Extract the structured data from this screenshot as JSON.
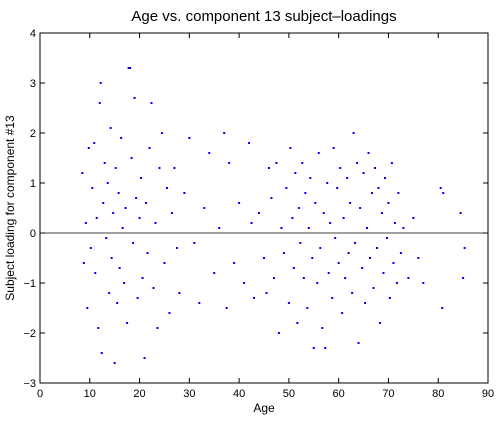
{
  "chart_data": {
    "type": "scatter",
    "title": "Age vs. component 13 subject–loadings",
    "xlabel": "Age",
    "ylabel": "Subject loading for component #13",
    "xlim": [
      0,
      90
    ],
    "ylim": [
      -3,
      4
    ],
    "xticks": [
      0,
      10,
      20,
      30,
      40,
      50,
      60,
      70,
      80,
      90
    ],
    "yticks": [
      -3,
      -2,
      -1,
      0,
      1,
      2,
      3,
      4
    ],
    "xtick_labels": [
      "0",
      "10",
      "20",
      "30",
      "40",
      "50",
      "60",
      "70",
      "80",
      "90"
    ],
    "ytick_labels": [
      "−3",
      "−2",
      "−1",
      "0",
      "1",
      "2",
      "3",
      "4"
    ],
    "reference_line_y": 0,
    "grid": false,
    "marker_color": "#0000ff",
    "axis_color": "#000000",
    "points": [
      [
        8.5,
        1.2
      ],
      [
        8.8,
        -0.6
      ],
      [
        9.2,
        0.2
      ],
      [
        9.5,
        -1.5
      ],
      [
        9.8,
        1.7
      ],
      [
        10.2,
        -0.3
      ],
      [
        10.5,
        0.9
      ],
      [
        10.9,
        1.8
      ],
      [
        11.1,
        -0.8
      ],
      [
        11.4,
        0.3
      ],
      [
        11.7,
        -1.9
      ],
      [
        12.0,
        2.6
      ],
      [
        12.2,
        3.0
      ],
      [
        12.4,
        -2.4
      ],
      [
        12.7,
        0.6
      ],
      [
        13.0,
        1.4
      ],
      [
        13.3,
        -0.1
      ],
      [
        13.6,
        1.0
      ],
      [
        13.9,
        -1.2
      ],
      [
        14.2,
        2.1
      ],
      [
        14.4,
        -0.5
      ],
      [
        14.7,
        0.4
      ],
      [
        15.0,
        -2.6
      ],
      [
        15.2,
        1.3
      ],
      [
        15.5,
        -1.4
      ],
      [
        15.8,
        0.8
      ],
      [
        16.0,
        -0.7
      ],
      [
        16.3,
        1.9
      ],
      [
        16.6,
        0.1
      ],
      [
        16.9,
        -1.0
      ],
      [
        17.2,
        0.5
      ],
      [
        17.5,
        -1.8
      ],
      [
        17.8,
        3.3
      ],
      [
        18.1,
        3.3
      ],
      [
        18.4,
        1.5
      ],
      [
        18.7,
        -0.2
      ],
      [
        19.0,
        2.7
      ],
      [
        19.3,
        0.7
      ],
      [
        19.6,
        -1.3
      ],
      [
        20.0,
        0.3
      ],
      [
        20.3,
        1.1
      ],
      [
        20.6,
        -0.9
      ],
      [
        21.0,
        -2.5
      ],
      [
        21.3,
        0.6
      ],
      [
        21.6,
        -0.4
      ],
      [
        22.0,
        1.7
      ],
      [
        22.4,
        2.6
      ],
      [
        22.8,
        -1.1
      ],
      [
        23.2,
        0.2
      ],
      [
        23.6,
        -1.9
      ],
      [
        24.0,
        1.3
      ],
      [
        24.5,
        2.0
      ],
      [
        25.0,
        -0.6
      ],
      [
        25.5,
        0.9
      ],
      [
        26.0,
        -1.6
      ],
      [
        26.5,
        0.4
      ],
      [
        27.0,
        1.3
      ],
      [
        27.5,
        -0.3
      ],
      [
        28.0,
        -1.2
      ],
      [
        29.0,
        0.8
      ],
      [
        30.0,
        1.9
      ],
      [
        31.0,
        -0.2
      ],
      [
        32.0,
        -1.4
      ],
      [
        33.0,
        0.5
      ],
      [
        34.0,
        1.6
      ],
      [
        35.0,
        -0.8
      ],
      [
        36.0,
        0.1
      ],
      [
        37.0,
        2.0
      ],
      [
        37.5,
        -1.5
      ],
      [
        38.0,
        1.4
      ],
      [
        39.0,
        -0.6
      ],
      [
        40.0,
        0.6
      ],
      [
        41.0,
        -1.0
      ],
      [
        42.0,
        1.8
      ],
      [
        42.5,
        0.2
      ],
      [
        43.0,
        -1.3
      ],
      [
        44.0,
        0.4
      ],
      [
        45.0,
        -0.5
      ],
      [
        45.5,
        -1.2
      ],
      [
        46.0,
        1.3
      ],
      [
        46.5,
        0.7
      ],
      [
        47.0,
        -0.9
      ],
      [
        47.5,
        1.4
      ],
      [
        48.0,
        -2.0
      ],
      [
        48.5,
        0.1
      ],
      [
        49.0,
        -0.4
      ],
      [
        49.5,
        0.9
      ],
      [
        50.0,
        -1.4
      ],
      [
        50.3,
        1.7
      ],
      [
        50.7,
        0.3
      ],
      [
        51.0,
        -0.7
      ],
      [
        51.3,
        1.2
      ],
      [
        51.7,
        -1.8
      ],
      [
        52.0,
        0.5
      ],
      [
        52.3,
        -0.2
      ],
      [
        52.7,
        1.4
      ],
      [
        53.0,
        -0.9
      ],
      [
        53.3,
        0.8
      ],
      [
        53.7,
        -1.5
      ],
      [
        54.0,
        0.1
      ],
      [
        54.3,
        1.1
      ],
      [
        54.7,
        -0.5
      ],
      [
        55.0,
        -2.3
      ],
      [
        55.3,
        0.6
      ],
      [
        55.7,
        -1.0
      ],
      [
        56.0,
        1.6
      ],
      [
        56.3,
        -0.3
      ],
      [
        56.7,
        -1.9
      ],
      [
        57.0,
        0.4
      ],
      [
        57.3,
        -2.3
      ],
      [
        57.7,
        1.0
      ],
      [
        58.0,
        -0.8
      ],
      [
        58.3,
        0.2
      ],
      [
        58.7,
        -1.3
      ],
      [
        59.0,
        1.7
      ],
      [
        59.3,
        -0.1
      ],
      [
        59.7,
        0.9
      ],
      [
        60.0,
        -0.6
      ],
      [
        60.3,
        1.3
      ],
      [
        60.7,
        -1.6
      ],
      [
        61.0,
        0.3
      ],
      [
        61.3,
        -0.9
      ],
      [
        61.7,
        1.1
      ],
      [
        62.0,
        -0.4
      ],
      [
        62.3,
        0.6
      ],
      [
        62.7,
        -1.2
      ],
      [
        63.0,
        2.0
      ],
      [
        63.3,
        -0.2
      ],
      [
        63.7,
        1.4
      ],
      [
        64.0,
        -2.2
      ],
      [
        64.3,
        0.5
      ],
      [
        64.7,
        -0.7
      ],
      [
        65.0,
        1.2
      ],
      [
        65.3,
        -1.4
      ],
      [
        65.7,
        0.1
      ],
      [
        66.0,
        1.6
      ],
      [
        66.3,
        -0.5
      ],
      [
        66.7,
        0.8
      ],
      [
        67.0,
        -1.1
      ],
      [
        67.3,
        1.3
      ],
      [
        67.7,
        -0.3
      ],
      [
        68.0,
        0.9
      ],
      [
        68.3,
        -1.8
      ],
      [
        68.7,
        0.4
      ],
      [
        69.0,
        -0.8
      ],
      [
        69.3,
        1.1
      ],
      [
        69.7,
        -0.1
      ],
      [
        70.0,
        0.6
      ],
      [
        70.3,
        -1.3
      ],
      [
        70.7,
        1.4
      ],
      [
        71.0,
        -0.6
      ],
      [
        71.3,
        0.2
      ],
      [
        71.7,
        -1.0
      ],
      [
        72.0,
        0.8
      ],
      [
        72.5,
        -0.4
      ],
      [
        73.0,
        0.1
      ],
      [
        74.0,
        -0.9
      ],
      [
        75.0,
        0.3
      ],
      [
        76.0,
        -0.5
      ],
      [
        77.0,
        -1.0
      ],
      [
        80.5,
        0.9
      ],
      [
        80.8,
        -1.5
      ],
      [
        81.0,
        0.8
      ],
      [
        84.5,
        0.4
      ],
      [
        85.0,
        -0.9
      ],
      [
        85.3,
        -0.3
      ]
    ]
  }
}
